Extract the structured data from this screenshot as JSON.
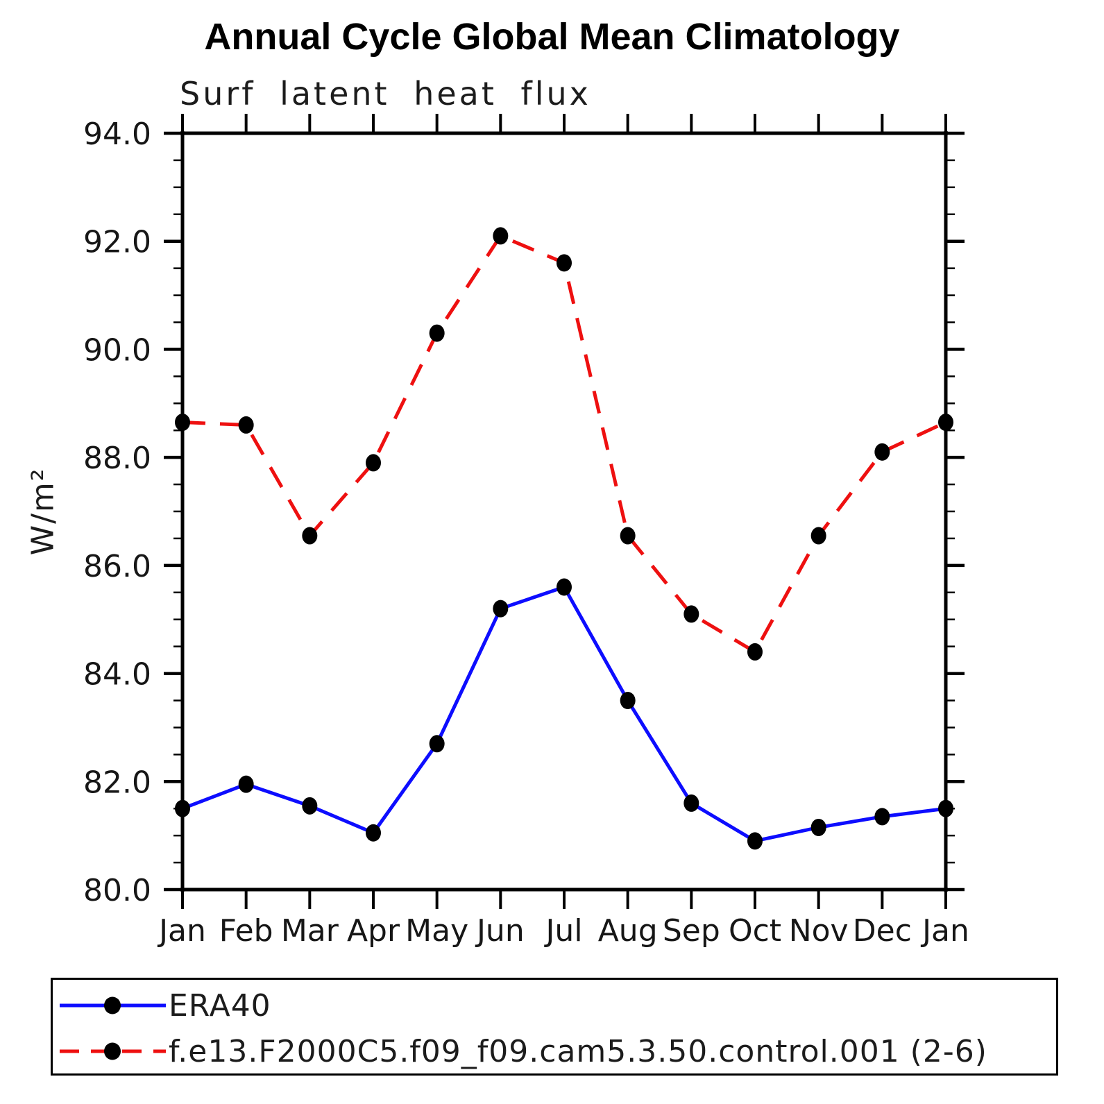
{
  "page_title": "Annual Cycle Global Mean Climatology",
  "chart_data": {
    "type": "line",
    "title": "Annual Cycle Global Mean Climatology",
    "subtitle": "Surf latent heat flux",
    "xlabel": "",
    "ylabel": "W/m²",
    "ylim": [
      80.0,
      94.0
    ],
    "ytick_major_step": 2.0,
    "ytick_minor_step": 0.5,
    "ytick_labels": [
      "80.0",
      "82.0",
      "84.0",
      "86.0",
      "88.0",
      "90.0",
      "92.0",
      "94.0"
    ],
    "categories": [
      "Jan",
      "Feb",
      "Mar",
      "Apr",
      "May",
      "Jun",
      "Jul",
      "Aug",
      "Sep",
      "Oct",
      "Nov",
      "Dec",
      "Jan"
    ],
    "grid": false,
    "legend_position": "bottom",
    "axis_color": "#000000",
    "series": [
      {
        "name": "ERA40",
        "color": "#0d0dff",
        "style": "solid",
        "marker": "circle",
        "marker_color": "#000000",
        "values": [
          81.5,
          81.95,
          81.55,
          81.05,
          82.7,
          85.2,
          85.6,
          83.5,
          81.6,
          80.9,
          81.15,
          81.35,
          81.5
        ]
      },
      {
        "name": "f.e13.F2000C5.f09_f09.cam5.3.50.control.001 (2-6)",
        "color": "#ee1010",
        "style": "dashed",
        "marker": "circle",
        "marker_color": "#000000",
        "values": [
          88.65,
          88.6,
          86.55,
          87.9,
          90.3,
          92.1,
          91.6,
          86.55,
          85.1,
          84.4,
          86.55,
          88.1,
          88.65
        ]
      }
    ]
  }
}
